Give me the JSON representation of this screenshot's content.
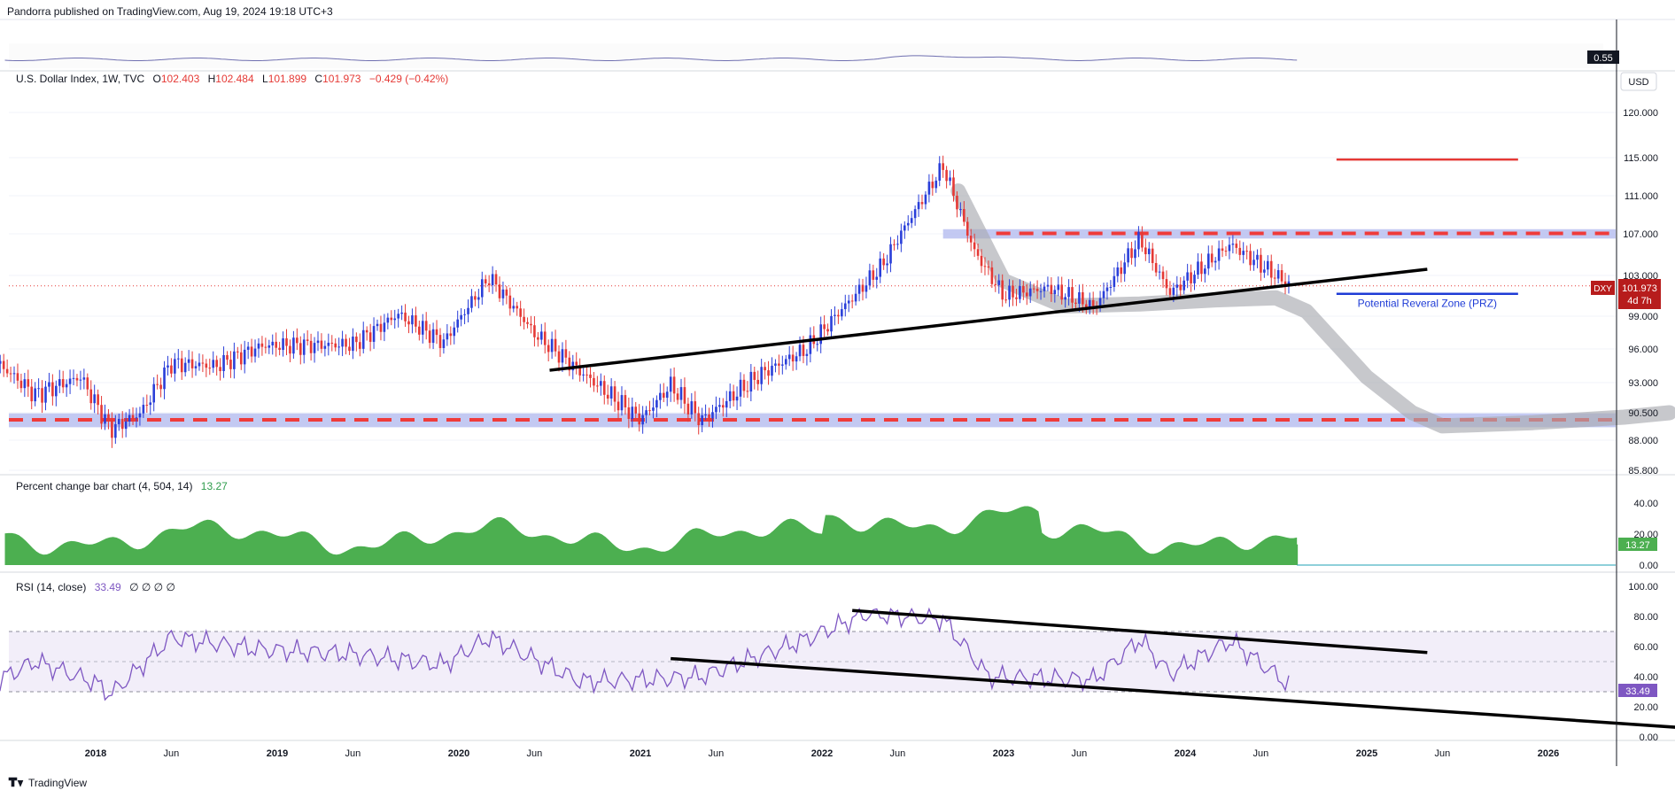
{
  "header": {
    "published": "Pandorra published on TradingView.com, Aug 19, 2024 19:18 UTC+3"
  },
  "footer": {
    "brand": "TradingView"
  },
  "top_strip": {
    "value": "0.55"
  },
  "main_pane": {
    "legend": {
      "symbol": "U.S. Dollar Index, 1W, TVC",
      "o_label": "O",
      "o": "102.403",
      "h_label": "H",
      "h": "102.484",
      "l_label": "L",
      "l": "101.899",
      "c_label": "C",
      "c": "101.973",
      "change": "−0.429 (−0.42%)"
    },
    "currency": "USD",
    "price_tag": {
      "ticker": "DXY",
      "price": "101.973",
      "countdown": "4d 7h"
    },
    "annotation": "Potential Reveral Zone (PRZ)",
    "y_ticks": [
      "120.000",
      "115.000",
      "111.000",
      "107.000",
      "103.000",
      "99.000",
      "96.000",
      "93.000",
      "90.500",
      "88.000",
      "85.800"
    ]
  },
  "pct_pane": {
    "title": "Percent change bar chart (4, 504, 14)",
    "value": "13.27",
    "y_ticks": [
      "40.00",
      "20.00",
      "0.00"
    ]
  },
  "rsi_pane": {
    "title": "RSI (14, close)",
    "value": "33.49",
    "extras": "∅ ∅ ∅ ∅",
    "y_ticks": [
      "100.00",
      "80.00",
      "60.00",
      "40.00",
      "20.00",
      "0.00"
    ]
  },
  "x_axis": [
    "2018",
    "Jun",
    "2019",
    "Jun",
    "2020",
    "Jun",
    "2021",
    "Jun",
    "2022",
    "Jun",
    "2023",
    "Jun",
    "2024",
    "Jun",
    "2025",
    "Jun",
    "2026"
  ],
  "colors": {
    "up": "#2a3fd9",
    "down": "#e53935",
    "trend": "#000000",
    "support": "#ef3b3b",
    "zone": "#b8bff0",
    "path": "#a9abb0",
    "histogram": "#4caf50",
    "rsi": "#7e57c2",
    "target": "#e53935",
    "prz": "#1e3bd6"
  },
  "chart_data": [
    {
      "type": "candlestick",
      "title": "U.S. Dollar Index, 1W, TVC",
      "x_range": [
        "2017-06",
        "2026-08"
      ],
      "ylim": [
        84.5,
        122
      ],
      "key_points": [
        {
          "date": "2017-06",
          "close": 95.3
        },
        {
          "date": "2017-09",
          "close": 92.0
        },
        {
          "date": "2017-12",
          "close": 93.5
        },
        {
          "date": "2018-02",
          "close": 89.0
        },
        {
          "date": "2018-04",
          "close": 90.5
        },
        {
          "date": "2018-06",
          "close": 94.7
        },
        {
          "date": "2018-09",
          "close": 94.5
        },
        {
          "date": "2018-12",
          "close": 96.3
        },
        {
          "date": "2019-06",
          "close": 96.4
        },
        {
          "date": "2019-09",
          "close": 99.2
        },
        {
          "date": "2019-12",
          "close": 96.6
        },
        {
          "date": "2020-03",
          "close": 102.8
        },
        {
          "date": "2020-06",
          "close": 97.4
        },
        {
          "date": "2020-09",
          "close": 94.0
        },
        {
          "date": "2021-01",
          "close": 89.9
        },
        {
          "date": "2021-03",
          "close": 92.8
        },
        {
          "date": "2021-05",
          "close": 89.8
        },
        {
          "date": "2021-09",
          "close": 93.8
        },
        {
          "date": "2021-12",
          "close": 96.0
        },
        {
          "date": "2022-05",
          "close": 104.0
        },
        {
          "date": "2022-09",
          "close": 114.1
        },
        {
          "date": "2022-11",
          "close": 105.5
        },
        {
          "date": "2023-01",
          "close": 101.0
        },
        {
          "date": "2023-04",
          "close": 101.8
        },
        {
          "date": "2023-07",
          "close": 99.9
        },
        {
          "date": "2023-10",
          "close": 106.5
        },
        {
          "date": "2023-12",
          "close": 101.3
        },
        {
          "date": "2024-04",
          "close": 106.0
        },
        {
          "date": "2024-08",
          "close": 101.973
        }
      ],
      "resistance_zone": [
        106.8,
        107.3
      ],
      "support_zone": [
        89.5,
        90.2
      ],
      "target_level": 114.8,
      "prz_level": 101.2,
      "last_close": 101.973
    },
    {
      "type": "bar",
      "title": "Percent change bar chart (4, 504, 14)",
      "ylim": [
        0,
        45
      ],
      "last_value": 13.27
    },
    {
      "type": "line",
      "title": "RSI (14, close)",
      "ylim": [
        0,
        100
      ],
      "bands": [
        30,
        50,
        70
      ],
      "key_points": [
        {
          "date": "2017-06",
          "value": 35
        },
        {
          "date": "2017-09",
          "value": 50
        },
        {
          "date": "2018-01",
          "value": 36
        },
        {
          "date": "2018-02",
          "value": 28
        },
        {
          "date": "2018-06",
          "value": 66
        },
        {
          "date": "2018-12",
          "value": 58
        },
        {
          "date": "2019-06",
          "value": 55
        },
        {
          "date": "2019-12",
          "value": 48
        },
        {
          "date": "2020-03",
          "value": 66
        },
        {
          "date": "2020-09",
          "value": 37
        },
        {
          "date": "2021-01",
          "value": 38
        },
        {
          "date": "2021-05",
          "value": 40
        },
        {
          "date": "2021-12",
          "value": 65
        },
        {
          "date": "2022-04",
          "value": 82
        },
        {
          "date": "2022-09",
          "value": 78
        },
        {
          "date": "2022-12",
          "value": 40
        },
        {
          "date": "2023-07",
          "value": 38
        },
        {
          "date": "2023-10",
          "value": 65
        },
        {
          "date": "2023-12",
          "value": 42
        },
        {
          "date": "2024-04",
          "value": 64
        },
        {
          "date": "2024-08",
          "value": 33.49
        }
      ],
      "last_value": 33.49
    }
  ]
}
